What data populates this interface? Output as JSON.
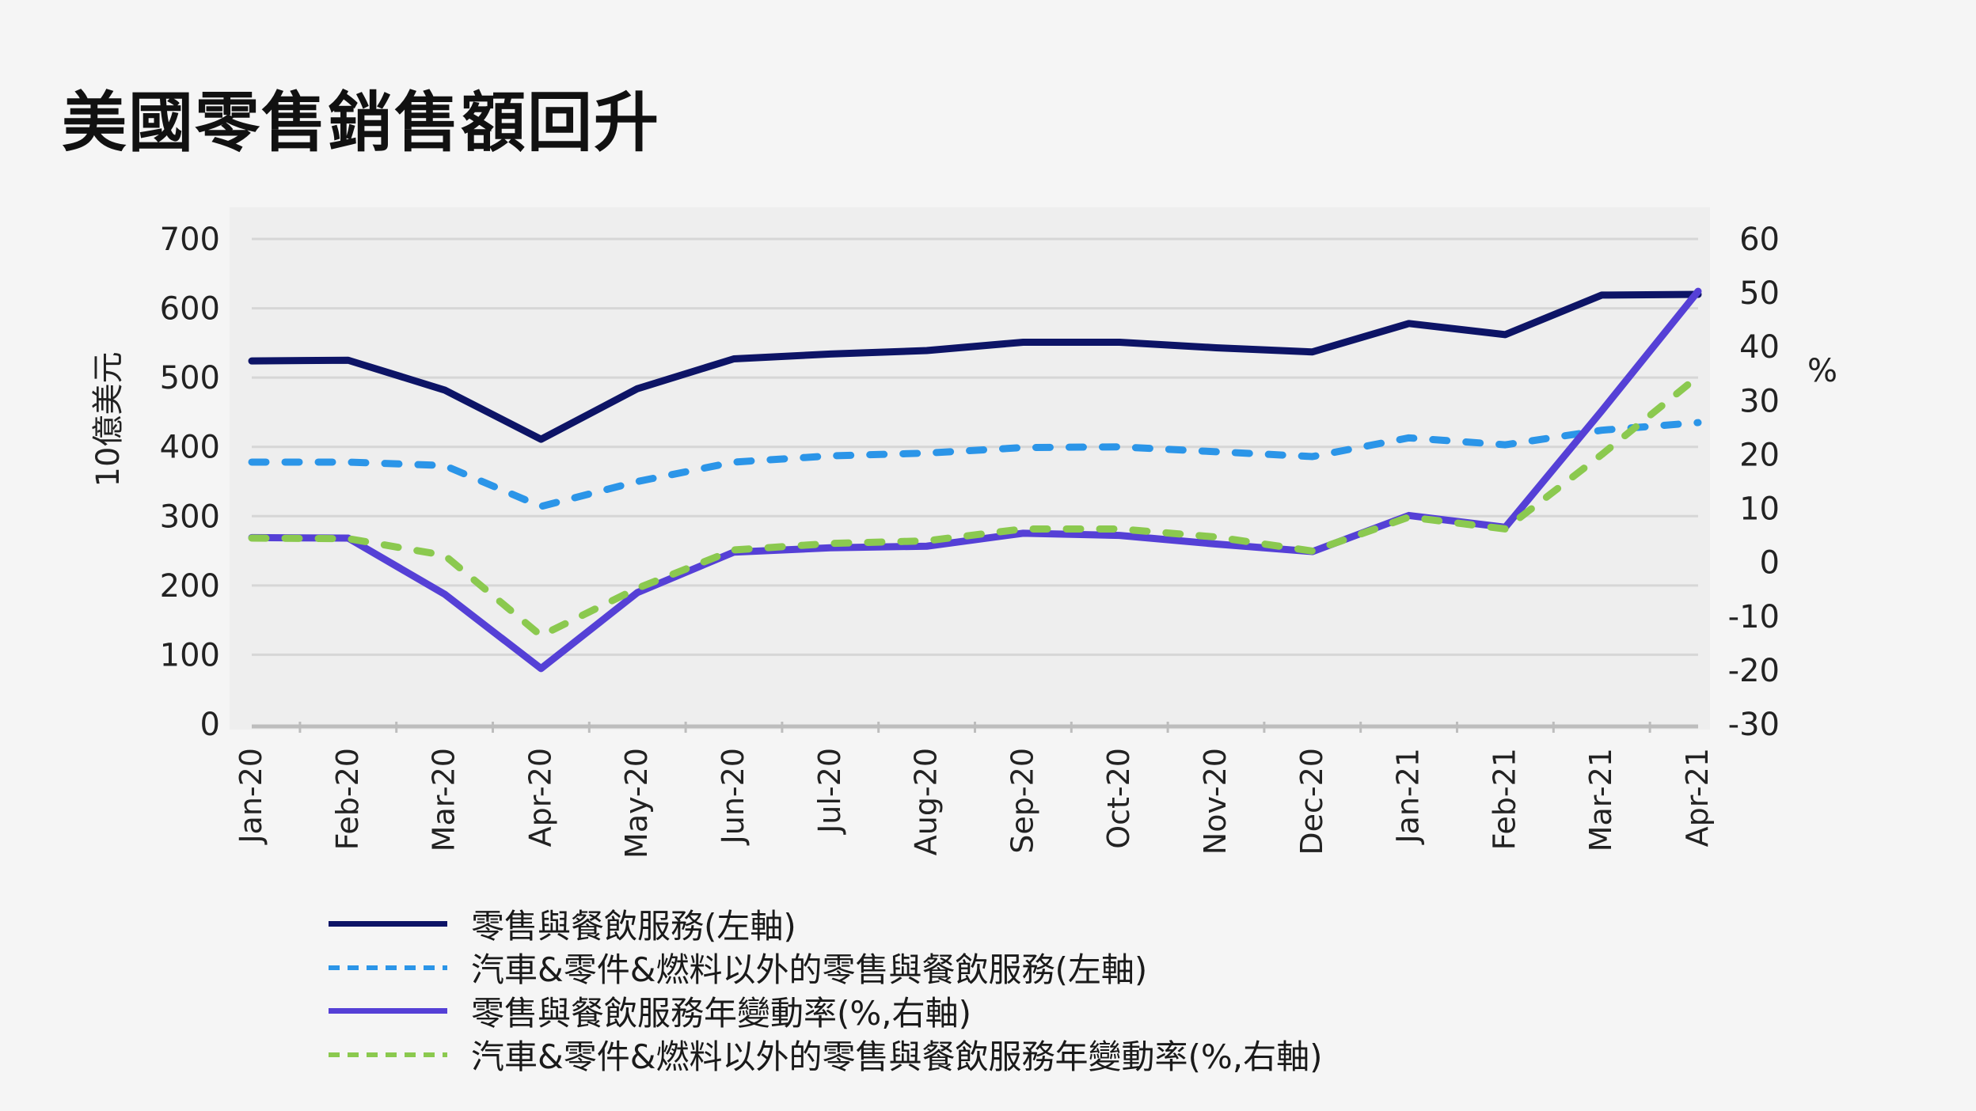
{
  "title": "美國零售銷售額回升",
  "chart_data": {
    "type": "line",
    "categories": [
      "Jan-20",
      "Feb-20",
      "Mar-20",
      "Apr-20",
      "May-20",
      "Jun-20",
      "Jul-20",
      "Aug-20",
      "Sep-20",
      "Oct-20",
      "Nov-20",
      "Dec-20",
      "Jan-21",
      "Feb-21",
      "Mar-21",
      "Apr-21"
    ],
    "y_left": {
      "label": "10億美元",
      "ticks": [
        "0",
        "100",
        "200",
        "300",
        "400",
        "500",
        "600",
        "700"
      ],
      "range": [
        0,
        700
      ]
    },
    "y_right": {
      "label": "%",
      "ticks": [
        "-30",
        "-20",
        "-10",
        "0",
        "10",
        "20",
        "30",
        "40",
        "50",
        "60"
      ],
      "range": [
        -30,
        60
      ]
    },
    "grid": true,
    "legend_position": "bottom",
    "series": [
      {
        "name": "零售與餐飲服務(左軸)",
        "axis": "left",
        "style": "solid",
        "color": "#0d1466",
        "values": [
          524,
          525,
          482,
          411,
          484,
          527,
          534,
          539,
          551,
          551,
          543,
          537,
          578,
          562,
          619,
          620
        ]
      },
      {
        "name": "汽車&零件&燃料以外的零售與餐飲服務(左軸)",
        "axis": "left",
        "style": "dashed",
        "color": "#2b95e8",
        "values": [
          378,
          378,
          373,
          314,
          350,
          378,
          387,
          391,
          399,
          400,
          393,
          386,
          413,
          403,
          424,
          435
        ]
      },
      {
        "name": "零售與餐飲服務年變動率(%,右軸)",
        "axis": "right",
        "style": "solid",
        "color": "#5540d6",
        "values": [
          4.6,
          4.5,
          -5.9,
          -19.7,
          -5.6,
          1.9,
          2.7,
          3.0,
          5.4,
          5.0,
          3.4,
          2.0,
          8.7,
          6.5,
          28.1,
          50.3
        ]
      },
      {
        "name": "汽車&零件&燃料以外的零售與餐飲服務年變動率(%,右軸)",
        "axis": "right",
        "style": "dashed",
        "color": "#8bc94f",
        "values": [
          4.5,
          4.4,
          1.3,
          -13.6,
          -4.8,
          2.3,
          3.5,
          4.0,
          6.2,
          6.2,
          4.7,
          2.1,
          8.4,
          6.2,
          20.0,
          34.5
        ]
      }
    ]
  }
}
